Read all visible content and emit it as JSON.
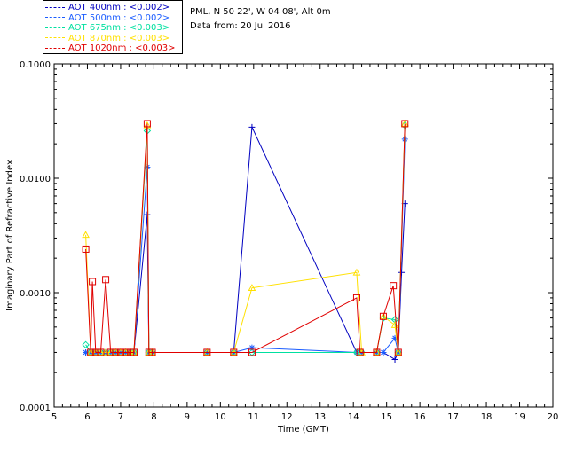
{
  "legend": [
    {
      "label": "AOT  400nm : <0.002>",
      "color": "#0000c0"
    },
    {
      "label": "AOT  500nm : <0.002>",
      "color": "#1a5cff"
    },
    {
      "label": "AOT  675nm : <0.003>",
      "color": "#00e0a0"
    },
    {
      "label": "AOT  870nm : <0.003>",
      "color": "#ffe000"
    },
    {
      "label": "AOT 1020nm : <0.003>",
      "color": "#e00000"
    }
  ],
  "info": {
    "site": "PML, N 50 22', W 04 08', Alt 0m",
    "date": "Data from: 20 Jul 2016"
  },
  "chart_data": {
    "type": "line",
    "xlabel": "Time (GMT)",
    "ylabel": "Imaginary Part of Refractive Index",
    "xlim": [
      5,
      20
    ],
    "ylim": [
      0.0001,
      0.1
    ],
    "yscale": "log",
    "xticks": [
      "5",
      "6",
      "7",
      "8",
      "9",
      "10",
      "11",
      "12",
      "13",
      "14",
      "15",
      "16",
      "17",
      "18",
      "19",
      "20"
    ],
    "yticks": [
      "0.0001",
      "0.0010",
      "0.0100",
      "0.1000"
    ],
    "series": [
      {
        "name": "AOT  400nm : <0.002>",
        "color": "#0000c0",
        "marker": "plus",
        "points": [
          [
            5.95,
            0.0003
          ],
          [
            6.1,
            0.0003
          ],
          [
            6.25,
            0.0003
          ],
          [
            6.4,
            0.0003
          ],
          [
            6.55,
            0.0003
          ],
          [
            6.7,
            0.0003
          ],
          [
            6.85,
            0.0003
          ],
          [
            7.0,
            0.0003
          ],
          [
            7.15,
            0.0003
          ],
          [
            7.3,
            0.0003
          ],
          [
            7.4,
            0.0003
          ],
          [
            7.8,
            0.0048
          ],
          [
            7.85,
            0.0003
          ],
          [
            7.95,
            0.0003
          ],
          [
            9.6,
            0.0003
          ],
          [
            10.4,
            0.0003
          ],
          [
            10.95,
            0.028
          ],
          [
            14.1,
            0.0003
          ],
          [
            14.25,
            0.0003
          ],
          [
            14.7,
            0.0003
          ],
          [
            14.9,
            0.0003
          ],
          [
            15.25,
            0.00026
          ],
          [
            15.35,
            0.0003
          ],
          [
            15.45,
            0.0015
          ],
          [
            15.55,
            0.006
          ]
        ]
      },
      {
        "name": "AOT  500nm : <0.002>",
        "color": "#1a5cff",
        "marker": "star",
        "points": [
          [
            5.95,
            0.0003
          ],
          [
            6.1,
            0.0003
          ],
          [
            6.25,
            0.0003
          ],
          [
            6.4,
            0.0003
          ],
          [
            6.55,
            0.0003
          ],
          [
            6.7,
            0.0003
          ],
          [
            6.85,
            0.0003
          ],
          [
            7.0,
            0.0003
          ],
          [
            7.15,
            0.0003
          ],
          [
            7.3,
            0.0003
          ],
          [
            7.4,
            0.0003
          ],
          [
            7.8,
            0.0125
          ],
          [
            7.85,
            0.0003
          ],
          [
            7.95,
            0.0003
          ],
          [
            9.6,
            0.0003
          ],
          [
            10.4,
            0.0003
          ],
          [
            10.95,
            0.00033
          ],
          [
            14.1,
            0.0003
          ],
          [
            14.25,
            0.0003
          ],
          [
            14.7,
            0.0003
          ],
          [
            14.9,
            0.0003
          ],
          [
            15.25,
            0.0004
          ],
          [
            15.35,
            0.0003
          ],
          [
            15.55,
            0.022
          ]
        ]
      },
      {
        "name": "AOT  675nm : <0.003>",
        "color": "#00e0a0",
        "marker": "diamond",
        "points": [
          [
            5.95,
            0.00035
          ],
          [
            6.1,
            0.0003
          ],
          [
            6.25,
            0.0003
          ],
          [
            6.4,
            0.0003
          ],
          [
            6.55,
            0.0003
          ],
          [
            6.7,
            0.0003
          ],
          [
            6.85,
            0.0003
          ],
          [
            7.0,
            0.0003
          ],
          [
            7.15,
            0.0003
          ],
          [
            7.3,
            0.0003
          ],
          [
            7.4,
            0.0003
          ],
          [
            7.8,
            0.026
          ],
          [
            7.85,
            0.0003
          ],
          [
            7.95,
            0.0003
          ],
          [
            9.6,
            0.0003
          ],
          [
            10.4,
            0.0003
          ],
          [
            10.95,
            0.0003
          ],
          [
            14.1,
            0.0003
          ],
          [
            14.25,
            0.0003
          ],
          [
            14.7,
            0.0003
          ],
          [
            14.9,
            0.0006
          ],
          [
            15.25,
            0.00058
          ],
          [
            15.35,
            0.0003
          ],
          [
            15.55,
            0.029
          ]
        ]
      },
      {
        "name": "AOT  870nm : <0.003>",
        "color": "#ffe000",
        "marker": "triangle",
        "points": [
          [
            5.95,
            0.0032
          ],
          [
            6.1,
            0.0003
          ],
          [
            6.25,
            0.0003
          ],
          [
            6.4,
            0.0003
          ],
          [
            6.55,
            0.0003
          ],
          [
            6.7,
            0.0003
          ],
          [
            6.85,
            0.0003
          ],
          [
            7.0,
            0.0003
          ],
          [
            7.15,
            0.0003
          ],
          [
            7.3,
            0.0003
          ],
          [
            7.4,
            0.0003
          ],
          [
            7.8,
            0.029
          ],
          [
            7.85,
            0.0003
          ],
          [
            7.95,
            0.0003
          ],
          [
            9.6,
            0.0003
          ],
          [
            10.4,
            0.0003
          ],
          [
            10.95,
            0.0011
          ],
          [
            14.1,
            0.0015
          ],
          [
            14.25,
            0.0003
          ],
          [
            14.7,
            0.0003
          ],
          [
            14.9,
            0.00062
          ],
          [
            15.25,
            0.00052
          ],
          [
            15.35,
            0.0003
          ],
          [
            15.55,
            0.03
          ]
        ]
      },
      {
        "name": "AOT 1020nm : <0.003>",
        "color": "#e00000",
        "marker": "square",
        "points": [
          [
            5.95,
            0.0024
          ],
          [
            6.1,
            0.0003
          ],
          [
            6.15,
            0.00125
          ],
          [
            6.25,
            0.0003
          ],
          [
            6.4,
            0.0003
          ],
          [
            6.55,
            0.0013
          ],
          [
            6.7,
            0.0003
          ],
          [
            6.85,
            0.0003
          ],
          [
            7.0,
            0.0003
          ],
          [
            7.15,
            0.0003
          ],
          [
            7.3,
            0.0003
          ],
          [
            7.4,
            0.0003
          ],
          [
            7.8,
            0.03
          ],
          [
            7.85,
            0.0003
          ],
          [
            7.95,
            0.0003
          ],
          [
            9.6,
            0.0003
          ],
          [
            10.4,
            0.0003
          ],
          [
            10.95,
            0.0003
          ],
          [
            14.1,
            0.0009
          ],
          [
            14.2,
            0.0003
          ],
          [
            14.7,
            0.0003
          ],
          [
            14.9,
            0.00062
          ],
          [
            15.2,
            0.00115
          ],
          [
            15.35,
            0.0003
          ],
          [
            15.55,
            0.03
          ]
        ]
      }
    ]
  }
}
